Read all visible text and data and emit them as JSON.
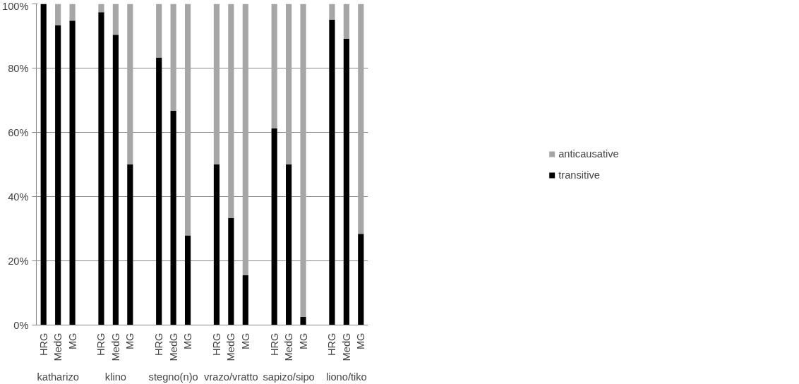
{
  "chart_data": {
    "type": "bar",
    "stacked": true,
    "categories": [
      "HRG",
      "MedG",
      "MG",
      null,
      "HRG",
      "MedG",
      "MG",
      null,
      "HRG",
      "MedG",
      "MG",
      null,
      "HRG",
      "MedG",
      "MG",
      null,
      "HRG",
      "MedG",
      "MG",
      null,
      "HRG",
      "MedG",
      "MG"
    ],
    "annotations": [
      "katharizo",
      "klino",
      "stegno(n)o",
      "vrazo/vratto",
      "sapizo/sipo",
      "liono/tiko"
    ],
    "series": [
      {
        "name": "transitive",
        "color": "#000000",
        "values": [
          100,
          93.3,
          94.8,
          null,
          97.4,
          90.4,
          50,
          null,
          83.3,
          66.7,
          27.9,
          null,
          50,
          33.3,
          15.5,
          null,
          61.2,
          50,
          2.6,
          null,
          95.1,
          89.1,
          28.4
        ]
      },
      {
        "name": "anticausative",
        "color": "#a6a6a6",
        "values": [
          0,
          6.7,
          5.2,
          null,
          2.6,
          9.6,
          50,
          null,
          16.7,
          33.3,
          72.1,
          null,
          50,
          66.7,
          84.5,
          null,
          38.8,
          50,
          97.4,
          null,
          4.9,
          10.9,
          71.6
        ]
      }
    ],
    "ylim": [
      0,
      100
    ],
    "yticks": [
      {
        "value": 0,
        "label": "0%"
      },
      {
        "value": 20,
        "label": "20%"
      },
      {
        "value": 40,
        "label": "40%"
      },
      {
        "value": 60,
        "label": "60%"
      },
      {
        "value": 80,
        "label": "80%"
      },
      {
        "value": 100,
        "label": "100%"
      }
    ],
    "grid": "y",
    "legend": "right"
  }
}
